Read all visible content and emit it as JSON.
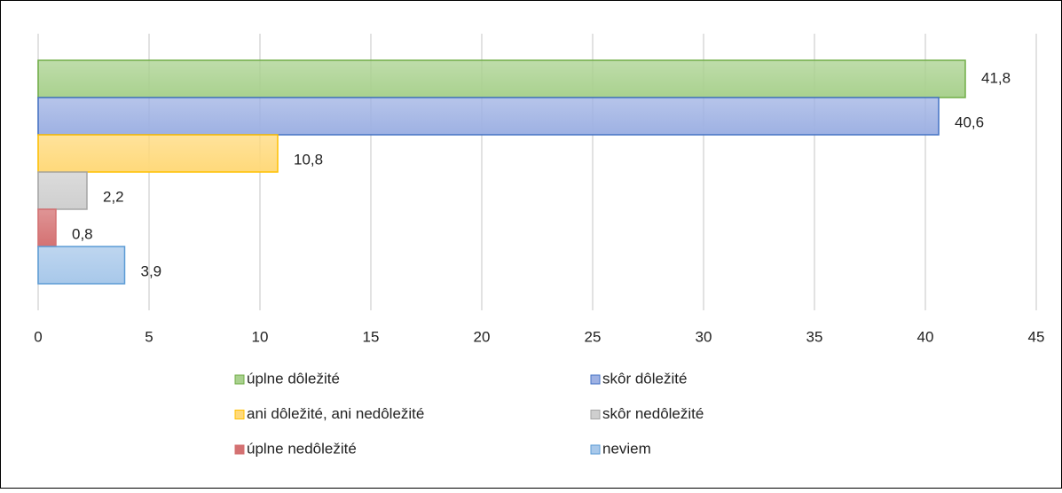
{
  "chart_data": {
    "type": "bar",
    "orientation": "horizontal",
    "categories": [
      null
    ],
    "series": [
      {
        "name": "úplne dôležité",
        "color": "#a9d18e",
        "edge": "#70ad47",
        "values": [
          41.8
        ],
        "value_labels": [
          "41,8"
        ]
      },
      {
        "name": "skôr dôležité",
        "color": "#9eb1e3",
        "edge": "#4472c4",
        "values": [
          40.6
        ],
        "value_labels": [
          "40,6"
        ]
      },
      {
        "name": "ani dôležité, ani nedôležité",
        "color": "#ffd97a",
        "edge": "#ffc000",
        "values": [
          10.8
        ],
        "value_labels": [
          "10,8"
        ]
      },
      {
        "name": "skôr nedôležité",
        "color": "#cfcfcf",
        "edge": "#a5a5a5",
        "values": [
          2.2
        ],
        "value_labels": [
          "2,2"
        ]
      },
      {
        "name": "úplne nedôležité",
        "color": "#d47172",
        "edge": "#d47172",
        "values": [
          0.8
        ],
        "value_labels": [
          "0,8"
        ]
      },
      {
        "name": "neviem",
        "color": "#a8c8ea",
        "edge": "#5b9bd5",
        "values": [
          3.9
        ],
        "value_labels": [
          "3,9"
        ]
      }
    ],
    "xlim": [
      0,
      45
    ],
    "xticks": [
      0,
      5,
      10,
      15,
      20,
      25,
      30,
      35,
      40,
      45
    ],
    "grid": true,
    "legend": "bottom"
  }
}
